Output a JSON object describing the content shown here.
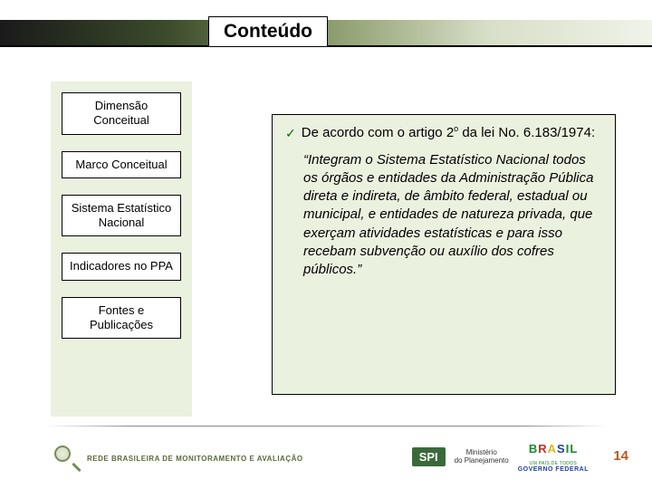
{
  "header": {
    "title": "Conteúdo"
  },
  "sidebar": {
    "items": [
      {
        "label": "Dimensão Conceitual"
      },
      {
        "label": "Marco Conceitual"
      },
      {
        "label": "Sistema Estatístico Nacional"
      },
      {
        "label": "Indicadores no PPA"
      },
      {
        "label": "Fontes e Publicações"
      }
    ],
    "bg_color": "#eaf1df"
  },
  "content": {
    "lead_pre": "De acordo com o artigo 2",
    "lead_sup": "o",
    "lead_post": " da lei No. 6.183/1974:",
    "quote": "“Integram o Sistema Estatístico Nacional todos os órgãos e entidades da Administração Pública direta e indireta, de âmbito federal, estadual ou municipal, e entidades de natureza privada, que exerçam atividades estatísticas e para isso recebam subvenção ou auxílio dos cofres públicos.”",
    "check_color": "#0a6b0a",
    "bg_color": "#eaf1df"
  },
  "footer": {
    "rede_text": "REDE BRASILEIRA DE MONITORAMENTO E AVALIAÇÃO",
    "spi": "SPI",
    "ministerio_l1": "Ministério",
    "ministerio_l2": "do Planejamento",
    "brasil_letters": [
      "B",
      "R",
      "A",
      "S",
      "I",
      "L"
    ],
    "brasil_sub": "UM PAÍS DE TODOS",
    "brasil_gov": "GOVERNO FEDERAL",
    "page_number": "14",
    "page_number_color": "#b85a1a"
  }
}
